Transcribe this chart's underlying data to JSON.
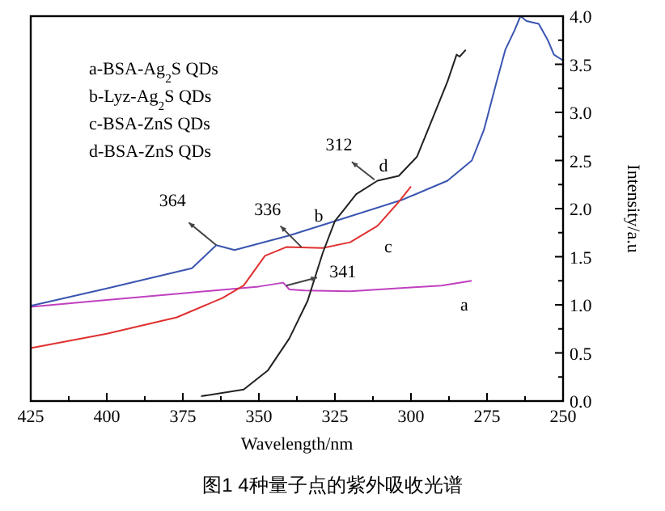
{
  "chart_data": {
    "type": "line",
    "title": "图1 4种量子点的紫外吸收光谱",
    "xlabel": "Wavelength/nm",
    "ylabel": "Intensity/a.u",
    "xlim": [
      425,
      250
    ],
    "xticks": [
      425,
      400,
      375,
      350,
      325,
      300,
      275,
      250
    ],
    "ylim": [
      0,
      4.0
    ],
    "yticks": [
      {
        "value": 0,
        "label": "0.0"
      },
      0.5,
      {
        "value": 1,
        "label": "1.0"
      },
      1.5,
      {
        "value": 2,
        "label": "2.0"
      },
      2.5,
      {
        "value": 3,
        "label": "3.0"
      },
      3.5,
      {
        "value": 4,
        "label": "4.0"
      }
    ],
    "grid": false,
    "marker": "none",
    "line_style": "solid",
    "series": [
      {
        "color": "#c040c0",
        "x": [
          425,
          400,
          375,
          350,
          342,
          340,
          335,
          320,
          300,
          290,
          280
        ],
        "values": [
          0.98,
          1.05,
          1.12,
          1.19,
          1.23,
          1.16,
          1.15,
          1.14,
          1.18,
          1.2,
          1.25
        ]
      },
      {
        "color": "#3a55b0",
        "x": [
          425,
          400,
          372,
          368,
          364,
          358,
          340,
          325,
          303,
          288,
          280,
          276,
          272,
          269,
          266,
          264,
          262,
          258,
          255,
          253,
          250
        ],
        "values": [
          0.99,
          1.17,
          1.38,
          1.5,
          1.62,
          1.57,
          1.72,
          1.87,
          2.09,
          2.29,
          2.5,
          2.82,
          3.3,
          3.65,
          3.85,
          4.0,
          3.95,
          3.92,
          3.75,
          3.6,
          3.54
        ]
      },
      {
        "color": "#e03030",
        "x": [
          425,
          400,
          377,
          362,
          355,
          348,
          341,
          329,
          320,
          311,
          304,
          300
        ],
        "values": [
          0.55,
          0.7,
          0.87,
          1.07,
          1.2,
          1.51,
          1.6,
          1.59,
          1.65,
          1.82,
          2.07,
          2.23
        ]
      },
      {
        "color": "#222222",
        "x": [
          369,
          355,
          347,
          340,
          334,
          329,
          325,
          318,
          311,
          304,
          298,
          293,
          288,
          285,
          284,
          282
        ],
        "values": [
          0.05,
          0.12,
          0.32,
          0.65,
          1.04,
          1.54,
          1.87,
          2.15,
          2.29,
          2.34,
          2.54,
          2.93,
          3.32,
          3.6,
          3.58,
          3.65
        ]
      }
    ],
    "annotations": [
      "a-BSA-Ag$_{2}$S QDs",
      "b-Lyz-Ag$_{2}$S QDs",
      "c-BSA-ZnS QDs",
      "d-BSA-ZnS QDs",
      {
        "text": "364",
        "x": 364,
        "y": 1.62
      },
      {
        "text": "336",
        "x": 336,
        "y": 1.6
      },
      {
        "text": "341",
        "x": 341,
        "y": 1.2
      },
      {
        "text": "312",
        "x": 312,
        "y": 2.3
      },
      "a",
      "b",
      "c",
      "d"
    ]
  }
}
